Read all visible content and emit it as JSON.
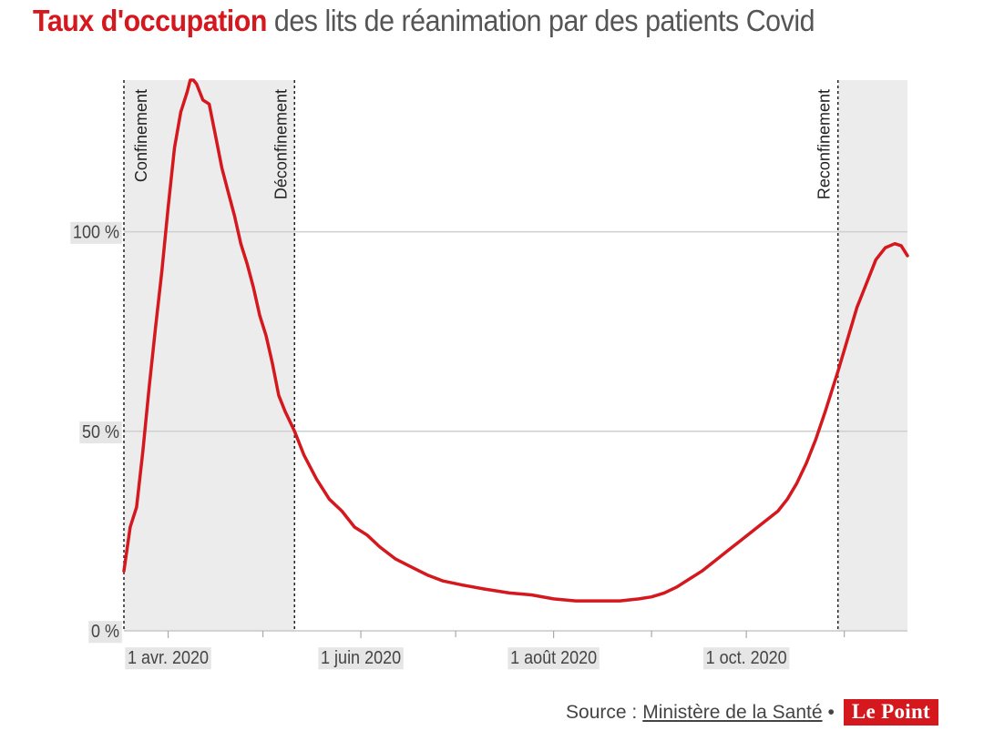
{
  "title": {
    "highlight": "Taux d'occupation",
    "rest": "des lits de réanimation par des patients Covid"
  },
  "source": {
    "prefix": "Source :",
    "link": "Ministère de la Santé",
    "separator": "•",
    "brand": "Le Point"
  },
  "colors": {
    "accent": "#d4181e",
    "line": "#d4181e",
    "shade": "#ececec",
    "grid": "#cfcfcf",
    "text": "#555555"
  },
  "chart_data": {
    "type": "line",
    "x_type": "date",
    "xlim": [
      "2020-03-18",
      "2020-11-21"
    ],
    "ylim": [
      0,
      138
    ],
    "yticks": [
      {
        "value": 0,
        "label": "0 %"
      },
      {
        "value": 50,
        "label": "50 %"
      },
      {
        "value": 100,
        "label": "100 %"
      }
    ],
    "xticks": [
      {
        "date": "2020-04-01",
        "label": "1 avr. 2020"
      },
      {
        "date": "2020-06-01",
        "label": "1 juin 2020"
      },
      {
        "date": "2020-08-01",
        "label": "1 août 2020"
      },
      {
        "date": "2020-10-01",
        "label": "1 oct. 2020"
      }
    ],
    "minor_ticks": [
      "2020-05-01",
      "2020-07-01",
      "2020-09-01",
      "2020-11-01"
    ],
    "events": [
      {
        "date": "2020-03-17",
        "label": "Confinement"
      },
      {
        "date": "2020-05-11",
        "label": "Déconfinement"
      },
      {
        "date": "2020-10-30",
        "label": "Reconfinement"
      }
    ],
    "shaded_periods": [
      [
        "2020-03-17",
        "2020-05-11"
      ],
      [
        "2020-10-30",
        "2020-11-21"
      ]
    ],
    "series": [
      {
        "values": [
          [
            "2020-03-18",
            15
          ],
          [
            "2020-03-20",
            26
          ],
          [
            "2020-03-22",
            31
          ],
          [
            "2020-03-24",
            45
          ],
          [
            "2020-03-26",
            61
          ],
          [
            "2020-03-28",
            76
          ],
          [
            "2020-03-30",
            90
          ],
          [
            "2020-04-01",
            106
          ],
          [
            "2020-04-03",
            121
          ],
          [
            "2020-04-05",
            130
          ],
          [
            "2020-04-07",
            135
          ],
          [
            "2020-04-08",
            138
          ],
          [
            "2020-04-09",
            138
          ],
          [
            "2020-04-10",
            137
          ],
          [
            "2020-04-12",
            133
          ],
          [
            "2020-04-14",
            132
          ],
          [
            "2020-04-16",
            124
          ],
          [
            "2020-04-18",
            116
          ],
          [
            "2020-04-20",
            110
          ],
          [
            "2020-04-22",
            104
          ],
          [
            "2020-04-24",
            97
          ],
          [
            "2020-04-26",
            92
          ],
          [
            "2020-04-28",
            86
          ],
          [
            "2020-04-30",
            79
          ],
          [
            "2020-05-02",
            74
          ],
          [
            "2020-05-04",
            67
          ],
          [
            "2020-05-06",
            59
          ],
          [
            "2020-05-08",
            55
          ],
          [
            "2020-05-11",
            50
          ],
          [
            "2020-05-14",
            44
          ],
          [
            "2020-05-18",
            38
          ],
          [
            "2020-05-22",
            33
          ],
          [
            "2020-05-26",
            30
          ],
          [
            "2020-05-30",
            26
          ],
          [
            "2020-06-03",
            24
          ],
          [
            "2020-06-07",
            21
          ],
          [
            "2020-06-12",
            18
          ],
          [
            "2020-06-17",
            16
          ],
          [
            "2020-06-22",
            14
          ],
          [
            "2020-06-27",
            12.5
          ],
          [
            "2020-07-03",
            11.5
          ],
          [
            "2020-07-10",
            10.5
          ],
          [
            "2020-07-18",
            9.5
          ],
          [
            "2020-07-25",
            9
          ],
          [
            "2020-08-01",
            8
          ],
          [
            "2020-08-08",
            7.5
          ],
          [
            "2020-08-15",
            7.5
          ],
          [
            "2020-08-22",
            7.5
          ],
          [
            "2020-08-28",
            8
          ],
          [
            "2020-09-01",
            8.5
          ],
          [
            "2020-09-05",
            9.5
          ],
          [
            "2020-09-09",
            11
          ],
          [
            "2020-09-13",
            13
          ],
          [
            "2020-09-17",
            15
          ],
          [
            "2020-09-21",
            17.5
          ],
          [
            "2020-09-25",
            20
          ],
          [
            "2020-09-29",
            22.5
          ],
          [
            "2020-10-03",
            25
          ],
          [
            "2020-10-07",
            27.5
          ],
          [
            "2020-10-11",
            30
          ],
          [
            "2020-10-14",
            33
          ],
          [
            "2020-10-17",
            37
          ],
          [
            "2020-10-20",
            42
          ],
          [
            "2020-10-23",
            48
          ],
          [
            "2020-10-26",
            55
          ],
          [
            "2020-10-30",
            65
          ],
          [
            "2020-11-02",
            73
          ],
          [
            "2020-11-05",
            81
          ],
          [
            "2020-11-08",
            87
          ],
          [
            "2020-11-11",
            93
          ],
          [
            "2020-11-14",
            96
          ],
          [
            "2020-11-17",
            97
          ],
          [
            "2020-11-19",
            96.5
          ],
          [
            "2020-11-21",
            94
          ]
        ]
      }
    ]
  }
}
